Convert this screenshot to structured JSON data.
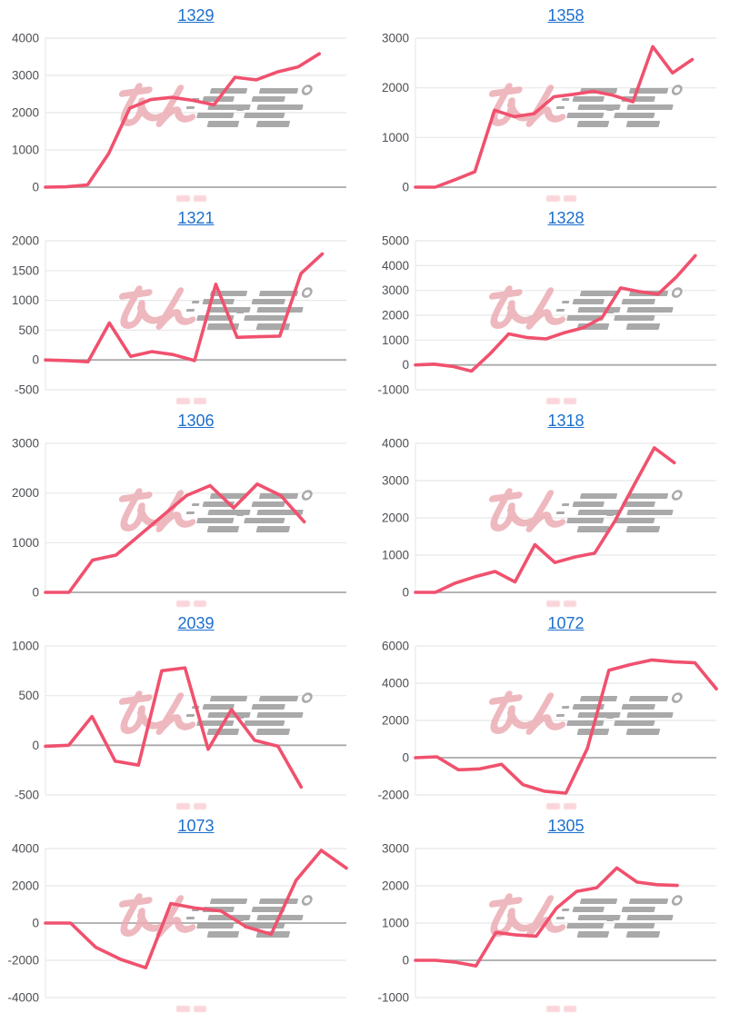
{
  "page": {
    "background": "#ffffff"
  },
  "colors": {
    "link": "#1c6fce",
    "line": "#f0516e",
    "grid": "#e8e8e8",
    "zero_axis": "#a9a9a9",
    "tick_text": "#4d4f53",
    "watermark_pink": "#ecacb4",
    "watermark_gray": "#9e9e9e"
  },
  "watermark": {
    "text": "みんレポ",
    "pink_part": "みん",
    "gray_part": "レポ"
  },
  "chart_style": {
    "grid": "horizontal",
    "legend": "none",
    "x_tick_labels": "none (clipped)"
  },
  "chart_data": [
    {
      "title": "1329",
      "type": "line",
      "ylim": [
        0,
        4000
      ],
      "yticks": [
        0,
        1000,
        2000,
        3000,
        4000
      ],
      "span": 0.91,
      "values": [
        0,
        10,
        60,
        900,
        2120,
        2350,
        2410,
        2330,
        2210,
        2950,
        2880,
        3090,
        3230,
        3580
      ]
    },
    {
      "title": "1358",
      "type": "line",
      "ylim": [
        0,
        3000
      ],
      "yticks": [
        0,
        1000,
        2000,
        3000
      ],
      "span": 0.92,
      "values": [
        0,
        0,
        150,
        310,
        1550,
        1420,
        1480,
        1820,
        1870,
        1930,
        1850,
        1720,
        2830,
        2300,
        2570
      ]
    },
    {
      "title": "1321",
      "type": "line",
      "ylim": [
        -500,
        2000
      ],
      "yticks": [
        -500,
        0,
        500,
        1000,
        1500,
        2000
      ],
      "span": 0.92,
      "values": [
        0,
        -10,
        -30,
        620,
        60,
        140,
        90,
        -10,
        1270,
        380,
        390,
        400,
        1450,
        1780
      ]
    },
    {
      "title": "1328",
      "type": "line",
      "ylim": [
        -1000,
        5000
      ],
      "yticks": [
        -1000,
        0,
        1000,
        2000,
        3000,
        4000,
        5000
      ],
      "span": 0.93,
      "values": [
        0,
        30,
        -60,
        -250,
        450,
        1250,
        1100,
        1050,
        1300,
        1500,
        1900,
        3100,
        2950,
        2850,
        3550,
        4400
      ]
    },
    {
      "title": "1306",
      "type": "line",
      "ylim": [
        0,
        3000
      ],
      "yticks": [
        0,
        1000,
        2000,
        3000
      ],
      "span": 0.86,
      "values": [
        0,
        0,
        650,
        750,
        1150,
        1550,
        1950,
        2150,
        1700,
        2180,
        1950,
        1420
      ]
    },
    {
      "title": "1318",
      "type": "line",
      "ylim": [
        0,
        4000
      ],
      "yticks": [
        0,
        1000,
        2000,
        3000,
        4000
      ],
      "span": 0.86,
      "values": [
        0,
        0,
        250,
        420,
        560,
        280,
        1280,
        800,
        950,
        1050,
        1900,
        2900,
        3880,
        3480
      ]
    },
    {
      "title": "2039",
      "type": "line",
      "ylim": [
        -500,
        1000
      ],
      "yticks": [
        -500,
        0,
        500,
        1000
      ],
      "span": 0.85,
      "values": [
        -10,
        0,
        290,
        -160,
        -200,
        750,
        780,
        -40,
        360,
        50,
        -10,
        -420
      ]
    },
    {
      "title": "1072",
      "type": "line",
      "ylim": [
        -2000,
        6000
      ],
      "yticks": [
        -2000,
        0,
        2000,
        4000,
        6000
      ],
      "span": 1.0,
      "values": [
        0,
        50,
        -650,
        -600,
        -350,
        -1450,
        -1800,
        -1900,
        500,
        4700,
        5000,
        5250,
        5150,
        5100,
        3700
      ]
    },
    {
      "title": "1073",
      "type": "line",
      "ylim": [
        -4000,
        4000
      ],
      "yticks": [
        -4000,
        -2000,
        0,
        2000,
        4000
      ],
      "span": 1.0,
      "values": [
        0,
        0,
        -1300,
        -1950,
        -2400,
        1050,
        800,
        650,
        -200,
        -600,
        2300,
        3900,
        2950
      ]
    },
    {
      "title": "1305",
      "type": "line",
      "ylim": [
        -1000,
        3000
      ],
      "yticks": [
        -1000,
        0,
        1000,
        2000,
        3000
      ],
      "span": 0.87,
      "values": [
        0,
        0,
        -50,
        -150,
        750,
        680,
        650,
        1400,
        1850,
        1950,
        2480,
        2100,
        2030,
        2010
      ]
    }
  ]
}
